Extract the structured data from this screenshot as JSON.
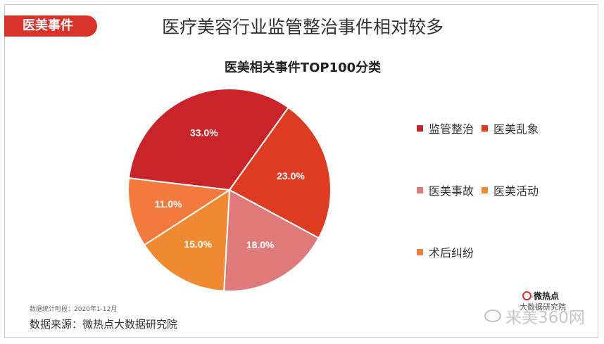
{
  "header": {
    "tag": "医美事件",
    "title": "医疗美容行业监管整治事件相对较多"
  },
  "chart_data": {
    "type": "pie",
    "title": "医美相关事件TOP100分类",
    "categories": [
      "监管整治",
      "医美乱象",
      "医美事故",
      "医美活动",
      "术后纠纷"
    ],
    "values": [
      33.0,
      23.0,
      18.0,
      15.0,
      11.0
    ],
    "labels": [
      "33.0%",
      "23.0%",
      "18.0%",
      "15.0%",
      "11.0%"
    ],
    "colors": [
      "#c9242a",
      "#de3b23",
      "#e07a7a",
      "#ef8a32",
      "#f27a3e"
    ],
    "legend_placement": "right"
  },
  "footer": {
    "period": "数据统计时段：2020年1-12月",
    "source": "数据来源：微热点大数据研究院",
    "logo_name": "微热点",
    "logo_sub": "大数据研究院",
    "watermark": "来美360网"
  }
}
